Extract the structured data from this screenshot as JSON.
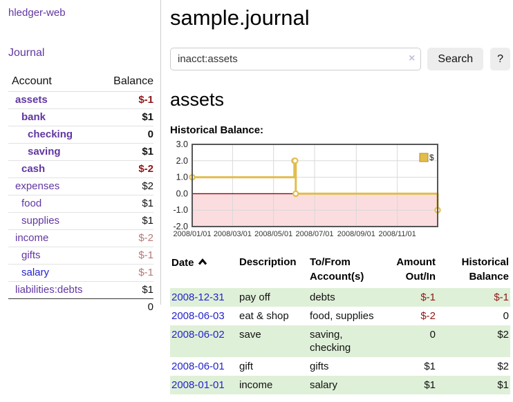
{
  "colors": {
    "link_purple": "#6136a2",
    "link_blue": "#2424cc",
    "negative_red": "#8f1616",
    "negative_muted": "#b57878",
    "row_stripe_green": "#dff0d8",
    "series_gold": "#e2bd4e",
    "negative_region_pink": "#fbdde0",
    "zero_line_red": "#990000"
  },
  "sidebar": {
    "brand": "hledger-web",
    "journal_link": "Journal",
    "accounts": {
      "header": {
        "account": "Account",
        "balance": "Balance"
      },
      "rows": [
        {
          "name": "assets",
          "balance": "$-1"
        },
        {
          "name": "bank",
          "balance": "$1"
        },
        {
          "name": "checking",
          "balance": "0"
        },
        {
          "name": "saving",
          "balance": "$1"
        },
        {
          "name": "cash",
          "balance": "$-2"
        },
        {
          "name": "expenses",
          "balance": "$2"
        },
        {
          "name": "food",
          "balance": "$1"
        },
        {
          "name": "supplies",
          "balance": "$1"
        },
        {
          "name": "income",
          "balance": "$-2"
        },
        {
          "name": "gifts",
          "balance": "$-1"
        },
        {
          "name": "salary",
          "balance": "$-1"
        },
        {
          "name": "liabilities:debts",
          "balance": "$1"
        }
      ],
      "total": "0"
    }
  },
  "main": {
    "title": "sample.journal",
    "search": {
      "value": "inacct:assets",
      "clear_label": "×",
      "search_button": "Search",
      "help_button": "?"
    },
    "heading": "assets",
    "chart_label": "Historical Balance:"
  },
  "chart_data": {
    "type": "line",
    "step": true,
    "title": "Historical Balance:",
    "series": [
      {
        "name": "$",
        "color": "#e2bd4e",
        "points": [
          {
            "x": "2008-01-01",
            "y": 1
          },
          {
            "x": "2008-06-01",
            "y": 2
          },
          {
            "x": "2008-06-02",
            "y": 2
          },
          {
            "x": "2008-06-03",
            "y": 0
          },
          {
            "x": "2008-12-31",
            "y": -1
          }
        ]
      }
    ],
    "x_ticks": [
      "2008/01/01",
      "2008/03/01",
      "2008/05/01",
      "2008/07/01",
      "2008/09/01",
      "2008/11/01"
    ],
    "y_ticks": [
      3.0,
      2.0,
      1.0,
      0.0,
      -1.0,
      -2.0
    ],
    "xlim": [
      "2008-01-01",
      "2008-12-31"
    ],
    "ylim": [
      -2,
      3
    ],
    "grid": true,
    "legend": {
      "position": "top-right",
      "label": "$"
    },
    "negative_region_color": "#fbdde0",
    "zero_line_color": "#990000"
  },
  "register": {
    "headers": {
      "date": "Date",
      "description": "Description",
      "to_from": "To/From Account(s)",
      "amount": "Amount Out/In",
      "balance": "Historical Balance"
    },
    "rows": [
      {
        "date": "2008-12-31",
        "description": "pay off",
        "to_from": "debts",
        "amount": "$-1",
        "balance": "$-1"
      },
      {
        "date": "2008-06-03",
        "description": "eat & shop",
        "to_from": "food, supplies",
        "amount": "$-2",
        "balance": "0"
      },
      {
        "date": "2008-06-02",
        "description": "save",
        "to_from": "saving, checking",
        "amount": "0",
        "balance": "$2"
      },
      {
        "date": "2008-06-01",
        "description": "gift",
        "to_from": "gifts",
        "amount": "$1",
        "balance": "$2"
      },
      {
        "date": "2008-01-01",
        "description": "income",
        "to_from": "salary",
        "amount": "$1",
        "balance": "$1"
      }
    ]
  }
}
